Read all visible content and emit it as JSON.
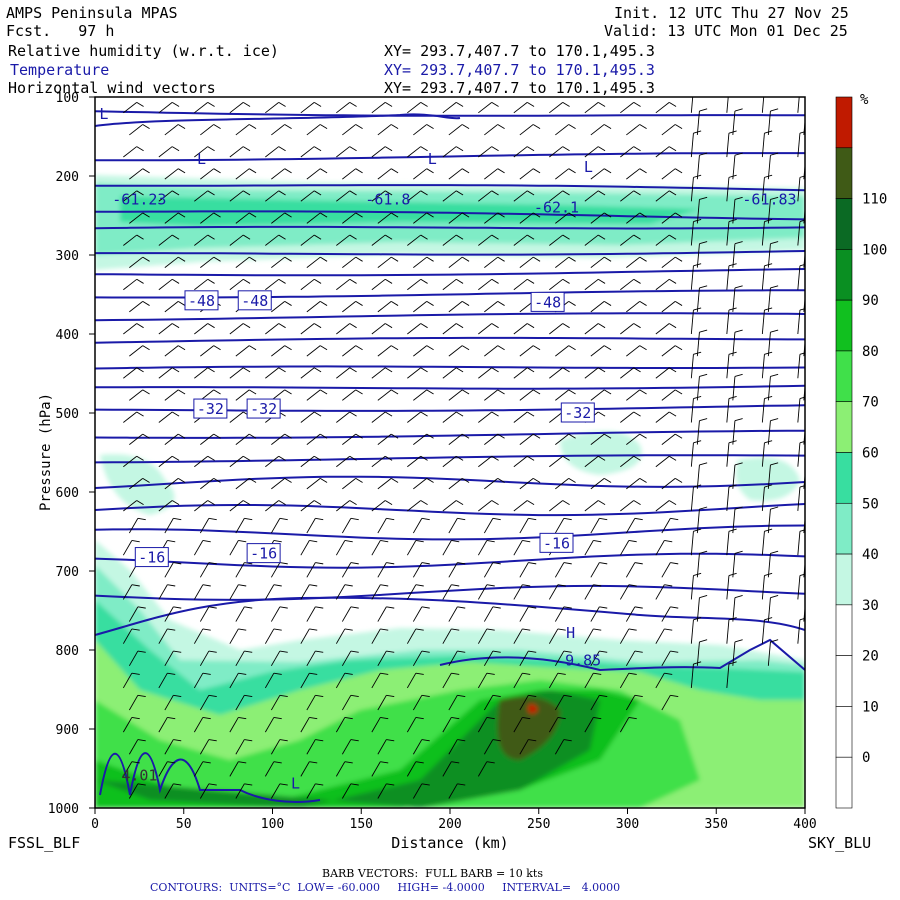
{
  "header": {
    "model": "AMPS Peninsula MPAS",
    "fcst": "Fcst.   97 h",
    "init": "Init. 12 UTC Thu 27 Nov 25",
    "valid": "Valid: 13 UTC Mon 01 Dec 25",
    "fields": [
      {
        "name": "Relative humidity (w.r.t. ice)",
        "xy": "XY= 293.7,407.7 to 170.1,495.3"
      },
      {
        "name": "Temperature",
        "xy": "XY= 293.7,407.7 to 170.1,495.3"
      },
      {
        "name": "Horizontal wind vectors",
        "xy": "XY= 293.7,407.7 to 170.1,495.3"
      }
    ]
  },
  "endpoints": {
    "left": "FSSL_BLF",
    "right": "SKY_BLU"
  },
  "footer": {
    "barb": "BARB VECTORS:  FULL BARB = 10 kts",
    "contours": "CONTOURS:  UNITS=°C  LOW= -60.000     HIGH= -4.0000     INTERVAL=   4.0000"
  },
  "colors": {
    "contour": "#1a1aa8",
    "barb": "#000000"
  },
  "chart_data": {
    "type": "heatmap",
    "xlabel": "Distance (km)",
    "ylabel": "Pressure (hPa)",
    "xlim": [
      0,
      400
    ],
    "ylim": [
      1000,
      100
    ],
    "x_ticks": [
      0,
      50,
      100,
      150,
      200,
      250,
      300,
      350,
      400
    ],
    "y_ticks": [
      100,
      200,
      300,
      400,
      500,
      600,
      700,
      800,
      900,
      1000
    ],
    "colorbar": {
      "unit": "%",
      "levels": [
        0,
        10,
        20,
        30,
        40,
        50,
        60,
        70,
        80,
        90,
        100,
        110
      ],
      "colors": [
        "#ffffff",
        "#ffffff",
        "#ffffff",
        "#ffffff",
        "#c4f7e3",
        "#7fecc6",
        "#38dea0",
        "#8cef74",
        "#40e04a",
        "#11c01f",
        "#0a8f22",
        "#0b6a24",
        "#3f5a16",
        "#c01a00"
      ]
    },
    "temperature_contour_labels": [
      {
        "text": "-61.23",
        "x": 25,
        "p": 230
      },
      {
        "text": "-61.8",
        "x": 165,
        "p": 230
      },
      {
        "text": "-62.1",
        "x": 260,
        "p": 240
      },
      {
        "text": "-61.83",
        "x": 380,
        "p": 230
      },
      {
        "text": "-48",
        "x": 60,
        "p": 358
      },
      {
        "text": "-48",
        "x": 90,
        "p": 358
      },
      {
        "text": "-48",
        "x": 255,
        "p": 360
      },
      {
        "text": "-32",
        "x": 65,
        "p": 495
      },
      {
        "text": "-32",
        "x": 95,
        "p": 495
      },
      {
        "text": "-32",
        "x": 272,
        "p": 500
      },
      {
        "text": "-16",
        "x": 32,
        "p": 683
      },
      {
        "text": "-16",
        "x": 95,
        "p": 678
      },
      {
        "text": "-16",
        "x": 260,
        "p": 665
      },
      {
        "text": "9.85",
        "x": 275,
        "p": 813
      }
    ],
    "extrema_labels": [
      {
        "text": "L",
        "x": 60,
        "p": 185
      },
      {
        "text": "L",
        "x": 190,
        "p": 185
      },
      {
        "text": "L",
        "x": 278,
        "p": 195
      },
      {
        "text": "L",
        "x": 5,
        "p": 128
      },
      {
        "text": "H",
        "x": 268,
        "p": 785
      },
      {
        "text": "L",
        "x": 113,
        "p": 975
      }
    ],
    "extra_labels": [
      {
        "text": "4.01",
        "x": 25,
        "p": 965
      }
    ]
  }
}
